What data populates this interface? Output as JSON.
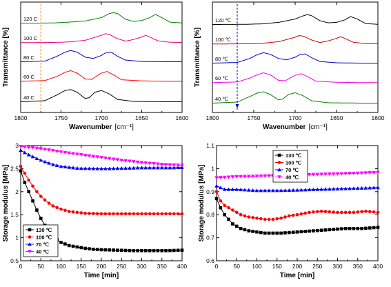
{
  "chart_data": [
    {
      "type": "line",
      "xlabel": "Wavenumber",
      "xunit": "[cm⁻¹]",
      "ylabel": "Transmittance [%]",
      "xlim": [
        1800,
        1600
      ],
      "xticks": [
        1800,
        1750,
        1700,
        1650,
        1600
      ],
      "marker": {
        "label": "",
        "x": 1775,
        "style": "dashed",
        "color": "#ff7f00"
      },
      "series": [
        {
          "name": "120 C",
          "label_text": "120 C",
          "color": "#008000",
          "x": [
            1800,
            1780,
            1760,
            1740,
            1720,
            1700,
            1690,
            1685,
            1680,
            1670,
            1660,
            1650,
            1640,
            1633,
            1625,
            1615,
            1600
          ],
          "y": [
            0.02,
            0.02,
            0.03,
            0.08,
            0.15,
            0.35,
            0.6,
            0.65,
            0.6,
            0.25,
            0.12,
            0.18,
            0.35,
            0.55,
            0.35,
            0.08,
            0.03
          ]
        },
        {
          "name": "100 C",
          "label_text": "100 C",
          "color": "#e6007e",
          "x": [
            1800,
            1760,
            1740,
            1720,
            1710,
            1700,
            1695,
            1690,
            1680,
            1670,
            1660,
            1650,
            1645,
            1640,
            1630,
            1615,
            1600
          ],
          "y": [
            0.01,
            0.02,
            0.05,
            0.15,
            0.3,
            0.45,
            0.55,
            0.5,
            0.25,
            0.1,
            0.2,
            0.35,
            0.45,
            0.35,
            0.12,
            0.03,
            0.02
          ]
        },
        {
          "name": "80 C",
          "label_text": "80 C",
          "color": "#0000cc",
          "x": [
            1800,
            1770,
            1755,
            1745,
            1738,
            1730,
            1720,
            1710,
            1700,
            1695,
            1688,
            1680,
            1670,
            1650,
            1620,
            1600
          ],
          "y": [
            0.02,
            0.06,
            0.35,
            0.6,
            0.7,
            0.6,
            0.3,
            0.22,
            0.4,
            0.55,
            0.6,
            0.35,
            0.12,
            0.04,
            0.02,
            0.02
          ]
        },
        {
          "name": "60 C",
          "label_text": "60 C",
          "color": "#ff0000",
          "x": [
            1800,
            1770,
            1755,
            1745,
            1738,
            1730,
            1720,
            1712,
            1705,
            1700,
            1693,
            1685,
            1675,
            1650,
            1620,
            1600
          ],
          "y": [
            0.01,
            0.05,
            0.3,
            0.55,
            0.65,
            0.5,
            0.15,
            0.12,
            0.35,
            0.5,
            0.6,
            0.4,
            0.1,
            0.03,
            0.01,
            0.01
          ]
        },
        {
          "name": "40 C",
          "label_text": "40 C",
          "color": "#000000",
          "x": [
            1800,
            1770,
            1755,
            1745,
            1738,
            1730,
            1720,
            1715,
            1708,
            1700,
            1690,
            1680,
            1660,
            1620,
            1600
          ],
          "y": [
            0.02,
            0.08,
            0.4,
            0.65,
            0.7,
            0.55,
            0.2,
            0.25,
            0.55,
            0.65,
            0.45,
            0.15,
            0.04,
            0.02,
            0.02
          ]
        }
      ]
    },
    {
      "type": "line",
      "xlabel": "Wavenumber",
      "xunit": "[cm⁻¹]",
      "ylabel": "Transmittance [%]",
      "xlim": [
        1800,
        1600
      ],
      "xticks": [
        1800,
        1750,
        1700,
        1650,
        1600
      ],
      "marker": {
        "label": "",
        "x": 1770,
        "style": "dashed",
        "color": "#0000cc",
        "arrow": true
      },
      "series": [
        {
          "name": "120 ℃",
          "label_text": "120 ℃",
          "color": "#000000",
          "x": [
            1800,
            1760,
            1740,
            1720,
            1700,
            1690,
            1685,
            1680,
            1670,
            1660,
            1650,
            1640,
            1633,
            1625,
            1615,
            1600
          ],
          "y": [
            0.02,
            0.03,
            0.06,
            0.15,
            0.35,
            0.55,
            0.62,
            0.55,
            0.25,
            0.12,
            0.15,
            0.3,
            0.5,
            0.35,
            0.08,
            0.03
          ]
        },
        {
          "name": "100 ℃",
          "label_text": "100 ℃",
          "color": "#cc0000",
          "x": [
            1800,
            1760,
            1740,
            1720,
            1710,
            1700,
            1695,
            1690,
            1680,
            1670,
            1660,
            1650,
            1645,
            1640,
            1630,
            1615,
            1600
          ],
          "y": [
            0.01,
            0.02,
            0.05,
            0.15,
            0.28,
            0.42,
            0.52,
            0.48,
            0.25,
            0.1,
            0.2,
            0.35,
            0.45,
            0.35,
            0.12,
            0.03,
            0.02
          ]
        },
        {
          "name": "80 ℃",
          "label_text": "80 ℃",
          "color": "#0000cc",
          "x": [
            1800,
            1770,
            1755,
            1745,
            1738,
            1730,
            1720,
            1710,
            1700,
            1695,
            1688,
            1680,
            1670,
            1650,
            1620,
            1600
          ],
          "y": [
            0.02,
            0.06,
            0.3,
            0.55,
            0.65,
            0.55,
            0.3,
            0.22,
            0.38,
            0.52,
            0.58,
            0.35,
            0.12,
            0.04,
            0.02,
            0.02
          ]
        },
        {
          "name": "60 ℃",
          "label_text": "60 ℃",
          "color": "#ee00ee",
          "x": [
            1800,
            1770,
            1755,
            1745,
            1738,
            1730,
            1720,
            1712,
            1705,
            1700,
            1693,
            1685,
            1675,
            1650,
            1620,
            1600
          ],
          "y": [
            0.01,
            0.05,
            0.28,
            0.5,
            0.6,
            0.48,
            0.15,
            0.12,
            0.32,
            0.45,
            0.55,
            0.38,
            0.1,
            0.03,
            0.01,
            0.01
          ]
        },
        {
          "name": "40 ℃",
          "label_text": "40 ℃",
          "color": "#008000",
          "x": [
            1800,
            1770,
            1755,
            1745,
            1738,
            1730,
            1720,
            1715,
            1708,
            1700,
            1690,
            1680,
            1660,
            1620,
            1600
          ],
          "y": [
            0.02,
            0.08,
            0.38,
            0.6,
            0.65,
            0.5,
            0.2,
            0.25,
            0.5,
            0.6,
            0.42,
            0.15,
            0.04,
            0.02,
            0.02
          ]
        }
      ]
    },
    {
      "type": "line",
      "xlabel": "Time [min]",
      "ylabel": "Storage modulus [MPa]",
      "xlim": [
        0,
        400
      ],
      "ylim": [
        0.5,
        3.0
      ],
      "xticks": [
        0,
        50,
        100,
        150,
        200,
        250,
        300,
        350,
        400
      ],
      "yticks": [
        0.5,
        1.0,
        1.5,
        2.0,
        2.5,
        3.0
      ],
      "legend": {
        "position": "bottom-left",
        "entries": [
          "130 ℃",
          "100 ℃",
          "70 ℃",
          "40 ℃"
        ]
      },
      "series": [
        {
          "name": "130 ℃",
          "color": "#000000",
          "marker": "square",
          "x": [
            0,
            10,
            20,
            30,
            40,
            50,
            60,
            70,
            80,
            90,
            100,
            120,
            140,
            160,
            180,
            200,
            240,
            280,
            320,
            360,
            400
          ],
          "y": [
            2.45,
            2.2,
            2.0,
            1.8,
            1.6,
            1.42,
            1.27,
            1.14,
            1.04,
            0.96,
            0.9,
            0.83,
            0.8,
            0.77,
            0.75,
            0.74,
            0.73,
            0.72,
            0.72,
            0.72,
            0.73
          ]
        },
        {
          "name": "100 ℃",
          "color": "#ff0000",
          "marker": "circle",
          "x": [
            0,
            10,
            20,
            30,
            40,
            50,
            60,
            70,
            80,
            100,
            120,
            140,
            160,
            200,
            240,
            280,
            320,
            360,
            400
          ],
          "y": [
            2.55,
            2.4,
            2.25,
            2.12,
            2.0,
            1.9,
            1.82,
            1.75,
            1.69,
            1.62,
            1.57,
            1.55,
            1.53,
            1.52,
            1.52,
            1.52,
            1.52,
            1.52,
            1.52
          ]
        },
        {
          "name": "70 ℃",
          "color": "#0000ff",
          "marker": "triangle-up",
          "x": [
            0,
            20,
            40,
            60,
            80,
            100,
            140,
            180,
            220,
            260,
            300,
            340,
            380,
            400
          ],
          "y": [
            2.9,
            2.8,
            2.72,
            2.65,
            2.59,
            2.55,
            2.51,
            2.5,
            2.5,
            2.51,
            2.52,
            2.52,
            2.52,
            2.53
          ]
        },
        {
          "name": "40 ℃",
          "color": "#ff00ff",
          "marker": "triangle-down",
          "x": [
            0,
            25,
            50,
            75,
            100,
            150,
            200,
            250,
            300,
            350,
            400
          ],
          "y": [
            2.98,
            2.96,
            2.93,
            2.9,
            2.86,
            2.8,
            2.74,
            2.68,
            2.63,
            2.59,
            2.57
          ]
        }
      ]
    },
    {
      "type": "line",
      "xlabel": "Time [min]",
      "ylabel": "Storage modulus [MPa]",
      "xlim": [
        0,
        400
      ],
      "ylim": [
        0.6,
        1.1
      ],
      "xticks": [
        0,
        50,
        100,
        150,
        200,
        250,
        300,
        350,
        400
      ],
      "yticks": [
        0.6,
        0.7,
        0.8,
        0.9,
        1.0,
        1.1
      ],
      "legend": {
        "position": "top-left",
        "entries": [
          "130 ℃",
          "100 ℃",
          "70 ℃",
          "40 ℃"
        ]
      },
      "series": [
        {
          "name": "130 ℃",
          "color": "#000000",
          "marker": "square",
          "x": [
            0,
            10,
            20,
            30,
            40,
            50,
            60,
            80,
            100,
            120,
            140,
            160,
            200,
            240,
            280,
            320,
            360,
            400
          ],
          "y": [
            0.87,
            0.83,
            0.8,
            0.78,
            0.76,
            0.75,
            0.74,
            0.73,
            0.725,
            0.72,
            0.72,
            0.72,
            0.725,
            0.73,
            0.735,
            0.74,
            0.74,
            0.745
          ]
        },
        {
          "name": "100 ℃",
          "color": "#ff0000",
          "marker": "circle",
          "x": [
            0,
            10,
            20,
            30,
            40,
            60,
            80,
            100,
            120,
            140,
            160,
            180,
            200,
            230,
            260,
            300,
            340,
            370,
            400
          ],
          "y": [
            0.9,
            0.86,
            0.84,
            0.83,
            0.82,
            0.8,
            0.79,
            0.785,
            0.78,
            0.78,
            0.785,
            0.795,
            0.8,
            0.81,
            0.815,
            0.81,
            0.81,
            0.815,
            0.81
          ]
        },
        {
          "name": "70 ℃",
          "color": "#0000ff",
          "marker": "triangle-up",
          "x": [
            0,
            20,
            50,
            100,
            150,
            200,
            250,
            300,
            350,
            400
          ],
          "y": [
            0.925,
            0.91,
            0.91,
            0.905,
            0.905,
            0.907,
            0.91,
            0.912,
            0.915,
            0.918
          ]
        },
        {
          "name": "40 ℃",
          "color": "#ff00ff",
          "marker": "triangle-down",
          "x": [
            0,
            50,
            100,
            150,
            200,
            250,
            300,
            350,
            400
          ],
          "y": [
            0.96,
            0.965,
            0.967,
            0.97,
            0.972,
            0.975,
            0.977,
            0.98,
            0.983
          ]
        }
      ]
    }
  ]
}
